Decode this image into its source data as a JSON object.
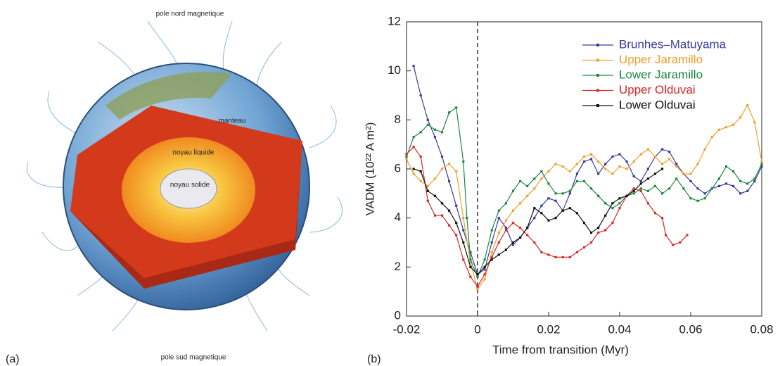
{
  "diagram": {
    "panel_label": "(a)",
    "north_label": "pole nord magnetique",
    "south_label": "pole sud magnetique",
    "mantle_label": "manteau",
    "outer_core_label": "noyau liquide",
    "inner_core_label": "noyau solide"
  },
  "chart_data": {
    "type": "line",
    "panel_label": "(b)",
    "x_label": "Time from transition (Myr)",
    "y_label": "VADM (10²² A m²)",
    "xlim": [
      -0.02,
      0.08
    ],
    "xticks": [
      -0.02,
      0,
      0.02,
      0.04,
      0.06,
      0.08
    ],
    "ylim": [
      0,
      12
    ],
    "yticks": [
      0,
      2,
      4,
      6,
      8,
      10,
      12
    ],
    "vline": 0,
    "legend": "upper right",
    "series": [
      {
        "name": "Brunhes–Matuyama",
        "color": "#3b3b9c",
        "x": [
          -0.018,
          -0.016,
          -0.014,
          -0.012,
          -0.01,
          -0.008,
          -0.006,
          -0.004,
          -0.002,
          0,
          0.002,
          0.004,
          0.006,
          0.008,
          0.01,
          0.012,
          0.014,
          0.016,
          0.018,
          0.02,
          0.022,
          0.024,
          0.026,
          0.028,
          0.03,
          0.032,
          0.034,
          0.036,
          0.038,
          0.04,
          0.042,
          0.044,
          0.046,
          0.048,
          0.05,
          0.052,
          0.054,
          0.056,
          0.058,
          0.06,
          0.062,
          0.064,
          0.066,
          0.068,
          0.07,
          0.072,
          0.074,
          0.076,
          0.078,
          0.08
        ],
        "values": [
          10.2,
          9.0,
          8.0,
          7.3,
          6.5,
          5.5,
          4.5,
          3.5,
          2.6,
          1.7,
          1.9,
          3.0,
          4.0,
          3.6,
          2.9,
          3.2,
          3.6,
          4.0,
          4.5,
          4.8,
          4.7,
          4.3,
          5.0,
          5.8,
          6.3,
          6.4,
          5.8,
          6.2,
          6.5,
          6.6,
          6.3,
          5.7,
          5.5,
          6.0,
          6.5,
          6.8,
          6.7,
          6.2,
          5.8,
          5.5,
          5.2,
          5.0,
          5.2,
          5.3,
          5.4,
          5.3,
          5.0,
          5.1,
          5.5,
          6.1
        ]
      },
      {
        "name": "Upper Jaramillo",
        "color": "#f0a030",
        "x": [
          -0.02,
          -0.018,
          -0.016,
          -0.014,
          -0.012,
          -0.01,
          -0.008,
          -0.006,
          -0.004,
          -0.002,
          0,
          0.002,
          0.004,
          0.006,
          0.008,
          0.01,
          0.012,
          0.014,
          0.016,
          0.018,
          0.02,
          0.022,
          0.024,
          0.026,
          0.028,
          0.03,
          0.032,
          0.034,
          0.036,
          0.038,
          0.04,
          0.042,
          0.044,
          0.046,
          0.048,
          0.05,
          0.052,
          0.054,
          0.056,
          0.058,
          0.06,
          0.062,
          0.064,
          0.066,
          0.068,
          0.07,
          0.072,
          0.074,
          0.076,
          0.078,
          0.08
        ],
        "values": [
          6.4,
          5.8,
          5.5,
          5.3,
          5.6,
          6.0,
          6.2,
          5.9,
          4.0,
          2.2,
          1.1,
          1.5,
          2.6,
          3.4,
          3.9,
          4.3,
          4.6,
          4.9,
          5.2,
          5.6,
          5.9,
          6.2,
          6.1,
          5.9,
          6.2,
          6.5,
          6.6,
          6.3,
          6.0,
          5.8,
          6.1,
          6.0,
          6.3,
          6.6,
          6.8,
          6.5,
          6.2,
          6.4,
          6.1,
          5.8,
          5.8,
          6.2,
          6.8,
          7.3,
          7.6,
          7.7,
          7.8,
          8.1,
          8.6,
          7.9,
          6.3
        ]
      },
      {
        "name": "Lower Jaramillo",
        "color": "#1a8a40",
        "x": [
          -0.02,
          -0.018,
          -0.016,
          -0.014,
          -0.012,
          -0.01,
          -0.008,
          -0.006,
          -0.004,
          -0.003,
          -0.002,
          0,
          0.002,
          0.004,
          0.006,
          0.008,
          0.01,
          0.012,
          0.014,
          0.016,
          0.018,
          0.02,
          0.022,
          0.024,
          0.026,
          0.028,
          0.03,
          0.032,
          0.034,
          0.036,
          0.038,
          0.04,
          0.042,
          0.044,
          0.046,
          0.048,
          0.05,
          0.052,
          0.054,
          0.056,
          0.058,
          0.06,
          0.062,
          0.064,
          0.066,
          0.068,
          0.07,
          0.072,
          0.074,
          0.076,
          0.078,
          0.08
        ],
        "values": [
          6.5,
          7.3,
          7.5,
          7.8,
          7.6,
          7.5,
          8.3,
          8.5,
          6.3,
          4.0,
          2.3,
          1.6,
          2.3,
          3.5,
          4.3,
          4.6,
          5.1,
          5.5,
          5.3,
          5.6,
          5.9,
          5.4,
          5.0,
          5.0,
          5.1,
          5.5,
          5.5,
          5.2,
          4.9,
          4.6,
          4.4,
          4.6,
          4.9,
          5.0,
          5.2,
          5.1,
          5.3,
          5.0,
          5.2,
          5.6,
          5.2,
          4.8,
          4.7,
          4.8,
          5.2,
          5.6,
          6.1,
          5.9,
          5.5,
          5.4,
          5.6,
          6.2
        ]
      },
      {
        "name": "Upper Olduvai",
        "color": "#d82828",
        "x": [
          -0.02,
          -0.018,
          -0.016,
          -0.014,
          -0.012,
          -0.01,
          -0.008,
          -0.006,
          -0.004,
          -0.002,
          0,
          0.002,
          0.004,
          0.006,
          0.008,
          0.01,
          0.012,
          0.014,
          0.016,
          0.018,
          0.02,
          0.022,
          0.024,
          0.026,
          0.028,
          0.03,
          0.032,
          0.034,
          0.036,
          0.038,
          0.04,
          0.042,
          0.044,
          0.046,
          0.048,
          0.05,
          0.052,
          0.053,
          0.055,
          0.057,
          0.059
        ],
        "values": [
          6.6,
          6.9,
          6.5,
          4.7,
          4.1,
          4.1,
          3.7,
          3.3,
          2.3,
          1.6,
          1.2,
          1.7,
          2.4,
          3.0,
          3.5,
          3.8,
          3.6,
          3.3,
          3.0,
          2.6,
          2.5,
          2.4,
          2.4,
          2.4,
          2.6,
          2.8,
          3.0,
          3.4,
          3.5,
          3.8,
          4.4,
          4.9,
          5.2,
          5.1,
          4.6,
          4.2,
          4.0,
          3.3,
          2.9,
          3.0,
          3.3
        ]
      },
      {
        "name": "Lower Olduvai",
        "color": "#111111",
        "x": [
          -0.018,
          -0.016,
          -0.014,
          -0.012,
          -0.01,
          -0.008,
          -0.006,
          -0.004,
          -0.002,
          0,
          0.002,
          0.004,
          0.006,
          0.008,
          0.01,
          0.012,
          0.014,
          0.016,
          0.018,
          0.02,
          0.022,
          0.024,
          0.026,
          0.028,
          0.03,
          0.032,
          0.034,
          0.036,
          0.038,
          0.04,
          0.042,
          0.044,
          0.046,
          0.048,
          0.05,
          0.052
        ],
        "values": [
          6.0,
          5.9,
          5.1,
          4.9,
          4.6,
          4.3,
          3.8,
          3.0,
          2.0,
          1.7,
          2.0,
          2.3,
          2.5,
          2.7,
          3.0,
          3.2,
          3.6,
          4.4,
          4.2,
          3.9,
          4.0,
          4.3,
          4.4,
          4.2,
          3.8,
          3.4,
          3.6,
          4.1,
          4.6,
          4.8,
          4.9,
          5.1,
          5.4,
          5.6,
          5.8,
          6.0
        ]
      }
    ]
  }
}
